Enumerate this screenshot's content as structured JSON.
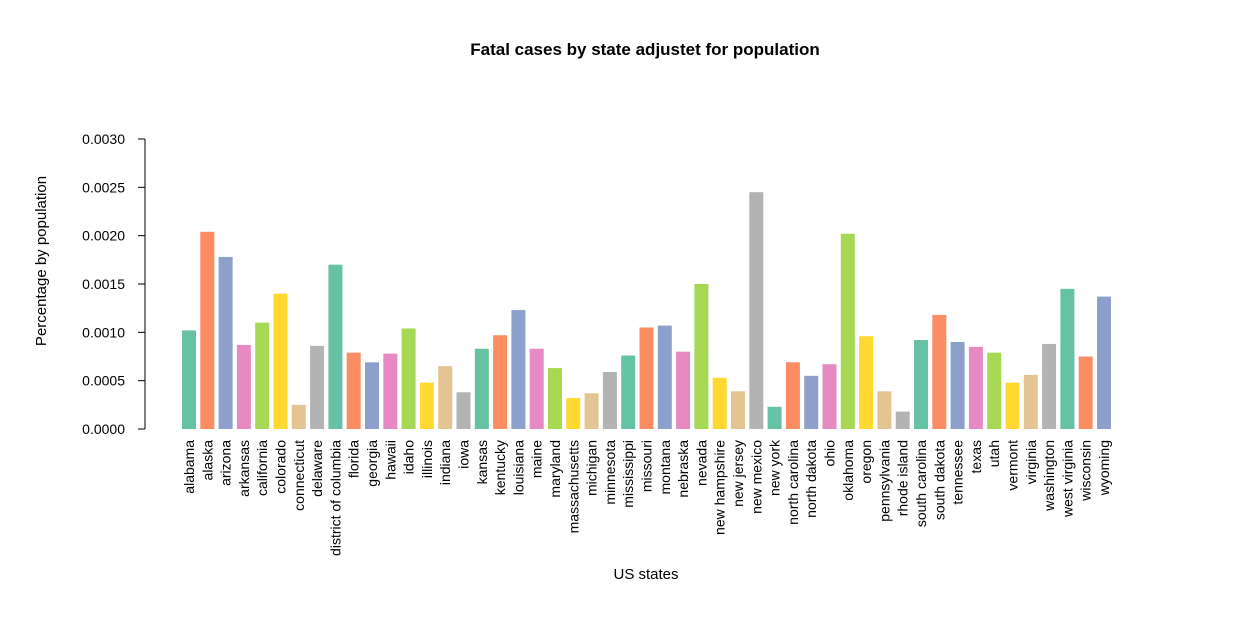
{
  "chart_data": {
    "type": "bar",
    "title": "Fatal cases by state adjustet for population",
    "xlabel": "US states",
    "ylabel": "Percentage by population",
    "ylim": [
      0,
      0.003
    ],
    "yticks": [
      "0.0000",
      "0.0005",
      "0.0010",
      "0.0015",
      "0.0020",
      "0.0025",
      "0.0030"
    ],
    "grid": false,
    "palette": [
      "#66c2a5",
      "#fc8d62",
      "#8da0cb",
      "#e78ac3",
      "#a6d854",
      "#ffd92f",
      "#e5c494",
      "#b3b3b3"
    ],
    "categories": [
      "alabama",
      "alaska",
      "arizona",
      "arkansas",
      "california",
      "colorado",
      "connecticut",
      "delaware",
      "district of columbia",
      "florida",
      "georgia",
      "hawaii",
      "idaho",
      "illinois",
      "indiana",
      "iowa",
      "kansas",
      "kentucky",
      "louisiana",
      "maine",
      "maryland",
      "massachusetts",
      "michigan",
      "minnesota",
      "mississippi",
      "missouri",
      "montana",
      "nebraska",
      "nevada",
      "new hampshire",
      "new jersey",
      "new mexico",
      "new york",
      "north carolina",
      "north dakota",
      "ohio",
      "oklahoma",
      "oregon",
      "pennsylvania",
      "rhode island",
      "south carolina",
      "south dakota",
      "tennessee",
      "texas",
      "utah",
      "vermont",
      "virginia",
      "washington",
      "west virginia",
      "wisconsin",
      "wyoming"
    ],
    "values": [
      0.00102,
      0.00204,
      0.00178,
      0.00087,
      0.0011,
      0.0014,
      0.00025,
      0.00086,
      0.0017,
      0.00079,
      0.00069,
      0.00078,
      0.00104,
      0.00048,
      0.00065,
      0.00038,
      0.00083,
      0.00097,
      0.00123,
      0.00083,
      0.00063,
      0.00032,
      0.00037,
      0.00059,
      0.00076,
      0.00105,
      0.00107,
      0.0008,
      0.0015,
      0.00053,
      0.00039,
      0.00245,
      0.00023,
      0.00069,
      0.00055,
      0.00067,
      0.00202,
      0.00096,
      0.00039,
      0.00018,
      0.00092,
      0.00118,
      0.0009,
      0.00085,
      0.00079,
      0.00048,
      0.00056,
      0.00088,
      0.00145,
      0.00075,
      0.00137
    ]
  }
}
